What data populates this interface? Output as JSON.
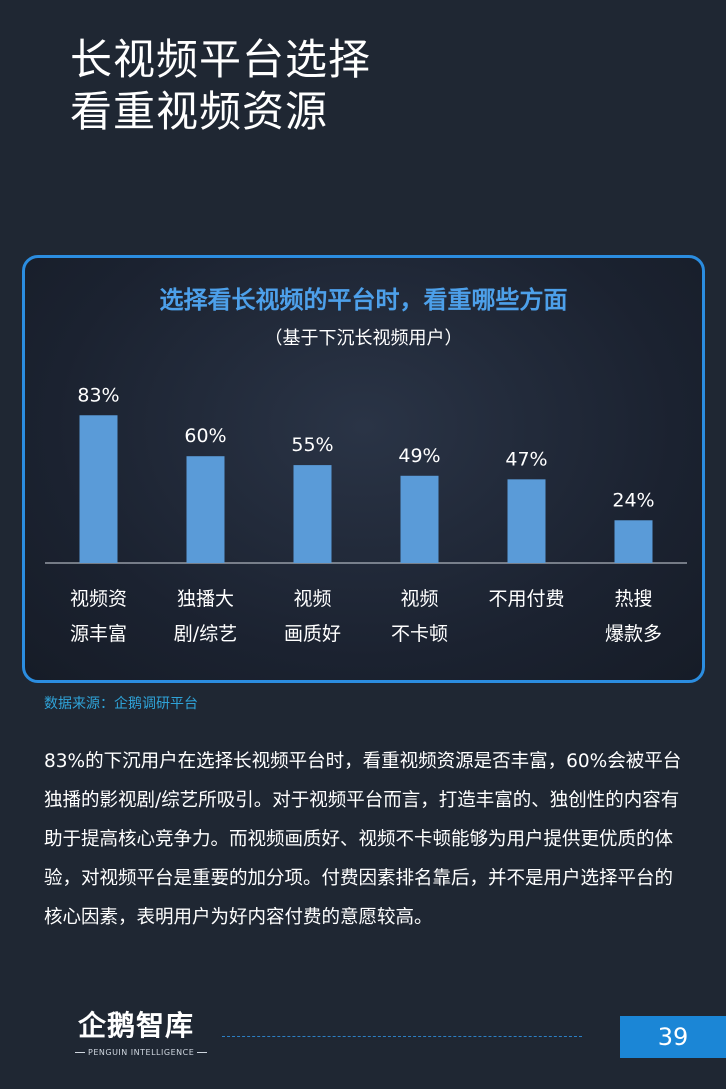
{
  "page": {
    "title_line1": "长视频平台选择",
    "title_line2": "看重视频资源"
  },
  "chart_data": {
    "type": "bar",
    "title": "选择看长视频的平台时，看重哪些方面",
    "subtitle": "（基于下沉长视频用户）",
    "categories": [
      [
        "视频资",
        "源丰富"
      ],
      [
        "独播大",
        "剧/综艺"
      ],
      [
        "视频",
        "画质好"
      ],
      [
        "视频",
        "不卡顿"
      ],
      [
        "不用付费"
      ],
      [
        "热搜",
        "爆款多"
      ]
    ],
    "values": [
      83,
      60,
      55,
      49,
      47,
      24
    ],
    "value_labels": [
      "83%",
      "60%",
      "55%",
      "49%",
      "47%",
      "24%"
    ],
    "ylim": [
      0,
      100
    ],
    "bar_color": "#5a9bd8",
    "grid": false
  },
  "source": "数据来源：企鹅调研平台",
  "body_text": "83%的下沉用户在选择长视频平台时，看重视频资源是否丰富，60%会被平台独播的影视剧/综艺所吸引。对于视频平台而言，打造丰富的、独创性的内容有助于提高核心竞争力。而视频画质好、视频不卡顿能够为用户提供更优质的体验，对视频平台是重要的加分项。付费因素排名靠后，并不是用户选择平台的核心因素，表明用户为好内容付费的意愿较高。",
  "footer": {
    "logo_text": "企鹅智库",
    "logo_sub": "PENGUIN INTELLIGENCE",
    "page_number": "39"
  },
  "colors": {
    "background": "#1f2733",
    "accent": "#2b8de0",
    "chart_title": "#4da0ea",
    "source": "#2fa3d8"
  }
}
